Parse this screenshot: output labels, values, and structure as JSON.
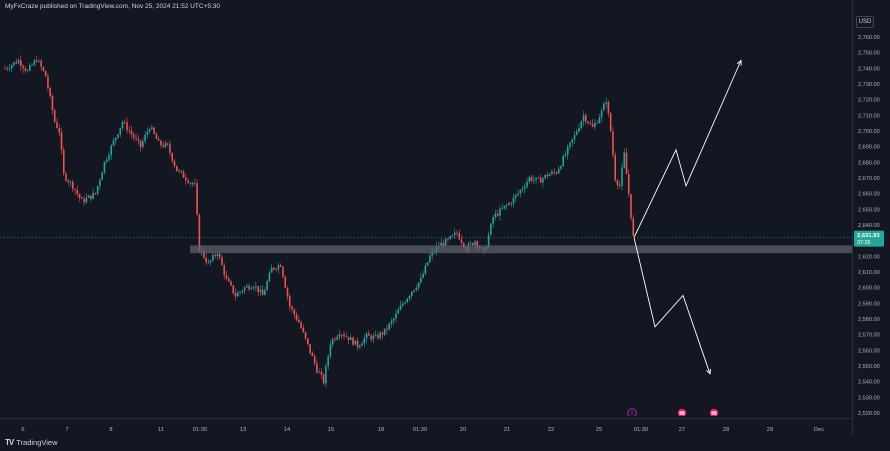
{
  "header": {
    "text": "MyFxCraze published on TradingView.com, Nov 25, 2024 21:52 UTC+5:30"
  },
  "footer": {
    "brand": "TradingView"
  },
  "currency_label": "USD",
  "current_price": {
    "value": "2,631.93",
    "countdown": "37:26",
    "price": 2631.93
  },
  "event_icons": [
    {
      "icon": "lightning-icon",
      "x_index": 275
    },
    {
      "icon": "us-flag-icon",
      "x_index": 290
    },
    {
      "icon": "us-flag-icon",
      "x_index": 305
    }
  ],
  "colors": {
    "background": "#131722",
    "up": "#26a69a",
    "down": "#ef5350",
    "zone": "#5d606b",
    "badge": "#26a69a",
    "arrows": "#ffffff",
    "event_purple": "#9c27b0",
    "event_red": "#e91e63"
  },
  "chart_data": {
    "type": "candlestick",
    "title": "",
    "xlabel": "",
    "ylabel": "",
    "ylim": [
      2520,
      2765
    ],
    "y_ticks": [
      "2,760.00",
      "2,750.00",
      "2,740.00",
      "2,730.00",
      "2,720.00",
      "2,710.00",
      "2,700.00",
      "2,690.00",
      "2,680.00",
      "2,670.00",
      "2,660.00",
      "2,650.00",
      "2,640.00",
      "2,630.00",
      "2,620.00",
      "2,610.00",
      "2,600.00",
      "2,590.00",
      "2,580.00",
      "2,570.00",
      "2,560.00",
      "2,550.00",
      "2,540.00",
      "2,530.00",
      "2,520.00"
    ],
    "x_ticks": [
      "6",
      "7",
      "8",
      "11",
      "01:30",
      "13",
      "14",
      "15",
      "18",
      "01:30",
      "20",
      "21",
      "22",
      "25",
      "01:30",
      "27",
      "28",
      "29",
      "Dec"
    ],
    "price_path_keypoints": [
      [
        0,
        2740
      ],
      [
        6,
        2745
      ],
      [
        10,
        2738
      ],
      [
        14,
        2746
      ],
      [
        18,
        2735
      ],
      [
        22,
        2706
      ],
      [
        24,
        2700
      ],
      [
        26,
        2672
      ],
      [
        30,
        2665
      ],
      [
        34,
        2655
      ],
      [
        40,
        2660
      ],
      [
        44,
        2680
      ],
      [
        48,
        2693
      ],
      [
        52,
        2706
      ],
      [
        56,
        2698
      ],
      [
        60,
        2690
      ],
      [
        64,
        2703
      ],
      [
        68,
        2692
      ],
      [
        72,
        2690
      ],
      [
        76,
        2675
      ],
      [
        80,
        2670
      ],
      [
        84,
        2665
      ],
      [
        86,
        2625
      ],
      [
        90,
        2615
      ],
      [
        94,
        2623
      ],
      [
        98,
        2605
      ],
      [
        102,
        2595
      ],
      [
        106,
        2600
      ],
      [
        110,
        2602
      ],
      [
        114,
        2595
      ],
      [
        118,
        2612
      ],
      [
        122,
        2615
      ],
      [
        126,
        2588
      ],
      [
        130,
        2578
      ],
      [
        134,
        2563
      ],
      [
        138,
        2548
      ],
      [
        141,
        2540
      ],
      [
        144,
        2565
      ],
      [
        148,
        2572
      ],
      [
        152,
        2568
      ],
      [
        156,
        2563
      ],
      [
        160,
        2569
      ],
      [
        164,
        2568
      ],
      [
        168,
        2572
      ],
      [
        172,
        2580
      ],
      [
        176,
        2590
      ],
      [
        180,
        2598
      ],
      [
        184,
        2605
      ],
      [
        188,
        2620
      ],
      [
        192,
        2627
      ],
      [
        196,
        2630
      ],
      [
        200,
        2635
      ],
      [
        204,
        2625
      ],
      [
        208,
        2630
      ],
      [
        212,
        2622
      ],
      [
        216,
        2645
      ],
      [
        220,
        2650
      ],
      [
        224,
        2655
      ],
      [
        228,
        2662
      ],
      [
        232,
        2670
      ],
      [
        236,
        2668
      ],
      [
        240,
        2672
      ],
      [
        244,
        2674
      ],
      [
        248,
        2685
      ],
      [
        252,
        2697
      ],
      [
        256,
        2710
      ],
      [
        260,
        2702
      ],
      [
        264,
        2712
      ],
      [
        266,
        2720
      ],
      [
        268,
        2700
      ],
      [
        270,
        2670
      ],
      [
        272,
        2665
      ],
      [
        274,
        2685
      ],
      [
        276,
        2660
      ],
      [
        278,
        2632
      ]
    ],
    "candles_count": 280,
    "key_zone": {
      "low": 2622,
      "high": 2627
    },
    "projections": [
      {
        "direction": "bullish",
        "path": [
          [
            2632
          ],
          [
            2688
          ],
          [
            2665
          ],
          [
            2745
          ]
        ]
      },
      {
        "direction": "bearish",
        "path": [
          [
            2632
          ],
          [
            2575
          ],
          [
            2595
          ],
          [
            2545
          ]
        ]
      }
    ]
  }
}
